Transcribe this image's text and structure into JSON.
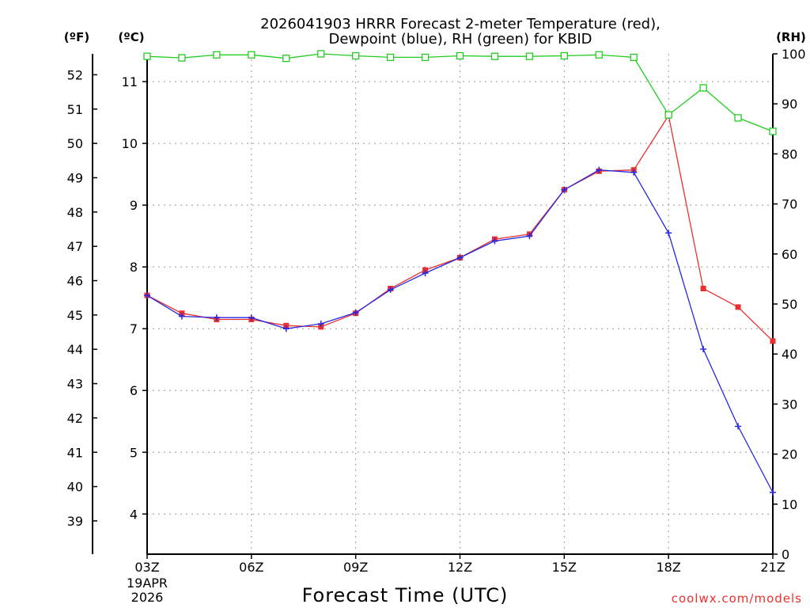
{
  "chart_data": {
    "type": "line",
    "title_line1": "2026041903 HRRR Forecast 2-meter Temperature (red),",
    "title_line2": "Dewpoint (blue), RH (green) for KBID",
    "xlabel": "Forecast Time (UTC)",
    "left_outer_unit": "(ºF)",
    "left_inner_unit": "(ºC)",
    "right_unit": "(RH)",
    "credit": "coolwx.com/models",
    "x": [
      3,
      4,
      5,
      6,
      7,
      8,
      9,
      10,
      11,
      12,
      13,
      14,
      15,
      16,
      17,
      18,
      19,
      20,
      21
    ],
    "x_ticks": [
      {
        "hour": 3,
        "label": "03Z"
      },
      {
        "hour": 6,
        "label": "06Z"
      },
      {
        "hour": 9,
        "label": "09Z"
      },
      {
        "hour": 12,
        "label": "12Z"
      },
      {
        "hour": 15,
        "label": "15Z"
      },
      {
        "hour": 18,
        "label": "18Z"
      },
      {
        "hour": 21,
        "label": "21Z"
      }
    ],
    "date_label_line1": "19APR",
    "date_label_line2": "2026",
    "xlim": [
      3,
      21
    ],
    "ylim_c": [
      3.35,
      11.45
    ],
    "ylim_rh": [
      0,
      100
    ],
    "y_ticks_c": [
      4,
      5,
      6,
      7,
      8,
      9,
      10,
      11
    ],
    "y_ticks_f": [
      39,
      40,
      41,
      42,
      43,
      44,
      45,
      46,
      47,
      48,
      49,
      50,
      51,
      52
    ],
    "y_ticks_rh": [
      0,
      10,
      20,
      30,
      40,
      50,
      60,
      70,
      80,
      90,
      100
    ],
    "grid": true,
    "series": [
      {
        "name": "Temperature",
        "unit": "C",
        "color": "#e83030",
        "marker": "square-filled",
        "values": [
          7.54,
          7.25,
          7.15,
          7.15,
          7.05,
          7.03,
          7.25,
          7.65,
          7.95,
          8.15,
          8.45,
          8.53,
          9.25,
          9.55,
          9.57,
          10.45,
          7.65,
          7.35,
          6.8
        ]
      },
      {
        "name": "Dewpoint",
        "unit": "C",
        "color": "#2828e0",
        "marker": "plus",
        "values": [
          7.54,
          7.2,
          7.18,
          7.18,
          7.0,
          7.08,
          7.26,
          7.63,
          7.9,
          8.15,
          8.42,
          8.5,
          9.25,
          9.57,
          9.53,
          8.55,
          6.67,
          5.42,
          4.35
        ]
      },
      {
        "name": "RH",
        "unit": "%",
        "color": "#22cc22",
        "marker": "square-open",
        "values": [
          99.5,
          99.2,
          99.8,
          99.8,
          99.1,
          100,
          99.6,
          99.3,
          99.3,
          99.6,
          99.5,
          99.5,
          99.6,
          99.8,
          99.3,
          87.8,
          93.2,
          87.2,
          84.5
        ]
      }
    ],
    "colors": {
      "axis": "#000000",
      "grid": "#999999",
      "credit": "#e83030"
    }
  }
}
